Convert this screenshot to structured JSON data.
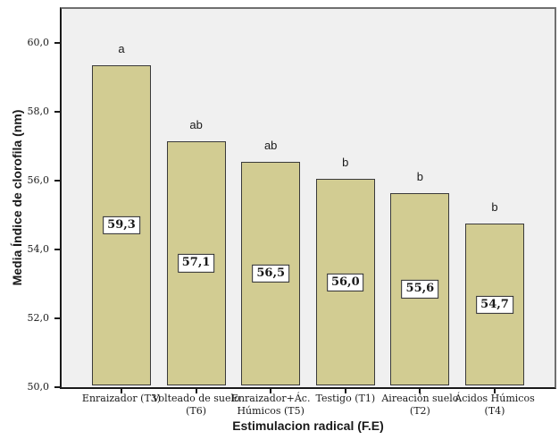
{
  "chart_data": {
    "type": "bar",
    "title": "",
    "xlabel": "Estimulacion radical (F.E)",
    "ylabel": "Media Índice de clorofila (nm)",
    "categories": [
      "Enraizador (T3)",
      "Volteado de suelo (T6)",
      "Enraizador+Ác. Húmicos (T5)",
      "Testigo (T1)",
      "Aireación suelo (T2)",
      "Ácidos Húmicos (T4)"
    ],
    "category_lines": [
      [
        "Enraizador (T3)"
      ],
      [
        "Volteado de suelo",
        "(T6)"
      ],
      [
        "Enraizador+Ác.",
        "Húmicos (T5)"
      ],
      [
        "Testigo (T1)"
      ],
      [
        "Aireación suelo",
        "(T2)"
      ],
      [
        "Ácidos Húmicos",
        "(T4)"
      ]
    ],
    "values": [
      59.3,
      57.1,
      56.5,
      56.0,
      55.6,
      54.7
    ],
    "value_labels": [
      "59,3",
      "57,1",
      "56,5",
      "56,0",
      "55,6",
      "54,7"
    ],
    "significance_letters": [
      "a",
      "ab",
      "ab",
      "b",
      "b",
      "b"
    ],
    "ylim": [
      50,
      61.0
    ],
    "yticks": [
      50,
      52,
      54,
      56,
      58,
      60
    ],
    "ytick_labels": [
      "50,0",
      "52,0",
      "54,0",
      "56,0",
      "58,0",
      "60,0"
    ],
    "grid": false,
    "legend": false,
    "colors": {
      "bar_fill": "#D2CC92",
      "bar_border": "#3A3A3A",
      "plot_background": "#F0F0F0",
      "frame_border": "#6F6F6F",
      "axis_line": "#1A1A1A",
      "value_box_background": "#FFFFFF",
      "value_box_border": "#262626",
      "text": "#1A1A1A"
    }
  }
}
